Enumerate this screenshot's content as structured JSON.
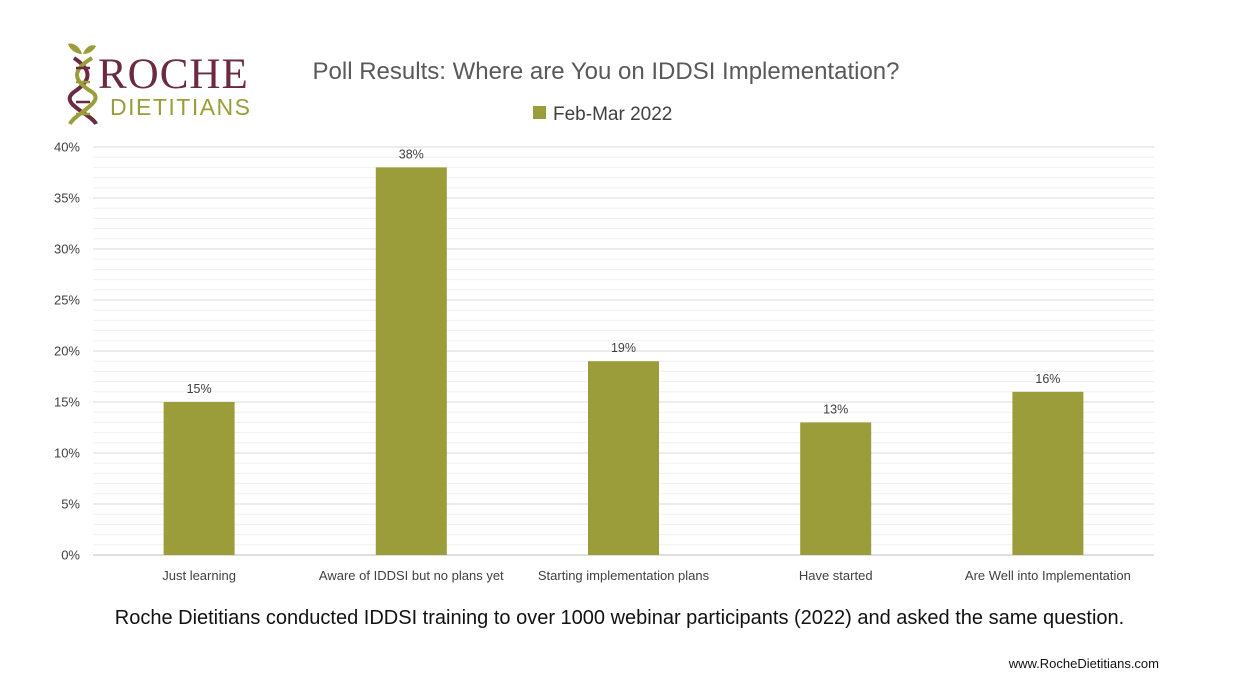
{
  "logo": {
    "line1": "ROCHE",
    "line2": "DIETITIANS",
    "icon": "dna-leaf-icon",
    "colors": {
      "primary": "#6b2a3f",
      "secondary": "#9a9d3a"
    }
  },
  "chart_data": {
    "type": "bar",
    "title": "Poll Results: Where are You on IDDSI Implementation?",
    "categories": [
      "Just learning",
      "Aware of IDDSI but no plans yet",
      "Starting implementation plans",
      "Have started",
      "Are Well into Implementation"
    ],
    "series": [
      {
        "name": "Feb-Mar 2022",
        "values": [
          15,
          38,
          19,
          13,
          16
        ],
        "color": "#9a9d3a"
      }
    ],
    "data_labels": [
      "15%",
      "38%",
      "19%",
      "13%",
      "16%"
    ],
    "ylim": [
      0,
      40
    ],
    "yticks": [
      0,
      5,
      10,
      15,
      20,
      25,
      30,
      35,
      40
    ],
    "ytick_labels": [
      "0%",
      "5%",
      "10%",
      "15%",
      "20%",
      "25%",
      "30%",
      "35%",
      "40%"
    ],
    "ylabel": "",
    "xlabel": "",
    "grid": true,
    "legend_position": "top-center"
  },
  "caption": "Roche Dietitians conducted IDDSI training to over 1000 webinar participants (2022) and asked the same question.",
  "website": "www.RocheDietitians.com"
}
